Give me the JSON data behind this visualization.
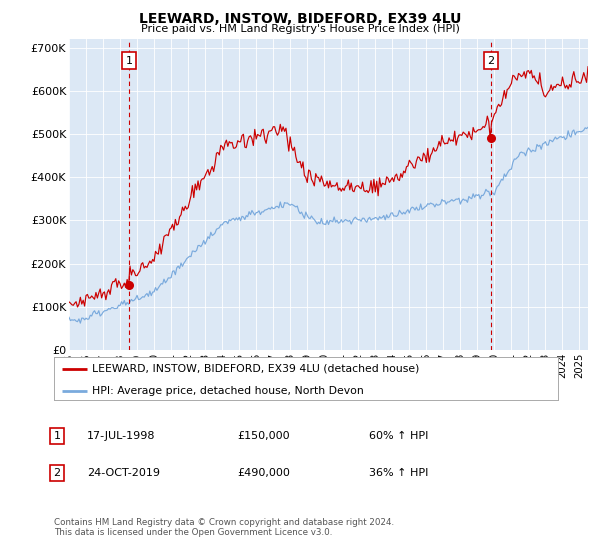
{
  "title": "LEEWARD, INSTOW, BIDEFORD, EX39 4LU",
  "subtitle": "Price paid vs. HM Land Registry's House Price Index (HPI)",
  "bg_color": "#dce8f5",
  "red_color": "#cc0000",
  "blue_color": "#7aaadd",
  "ylim": [
    0,
    720000
  ],
  "yticks": [
    0,
    100000,
    200000,
    300000,
    400000,
    500000,
    600000,
    700000
  ],
  "ytick_labels": [
    "£0",
    "£100K",
    "£200K",
    "£300K",
    "£400K",
    "£500K",
    "£600K",
    "£700K"
  ],
  "marker1_x": 1998.54,
  "marker1_price": 150000,
  "marker1_label": "1",
  "marker2_x": 2019.79,
  "marker2_price": 490000,
  "marker2_label": "2",
  "legend_line1": "LEEWARD, INSTOW, BIDEFORD, EX39 4LU (detached house)",
  "legend_line2": "HPI: Average price, detached house, North Devon",
  "note1_num": "1",
  "note1_date": "17-JUL-1998",
  "note1_price": "£150,000",
  "note1_hpi": "60% ↑ HPI",
  "note2_num": "2",
  "note2_date": "24-OCT-2019",
  "note2_price": "£490,000",
  "note2_hpi": "36% ↑ HPI",
  "footer": "Contains HM Land Registry data © Crown copyright and database right 2024.\nThis data is licensed under the Open Government Licence v3.0.",
  "xmin": 1995.0,
  "xmax": 2025.5
}
